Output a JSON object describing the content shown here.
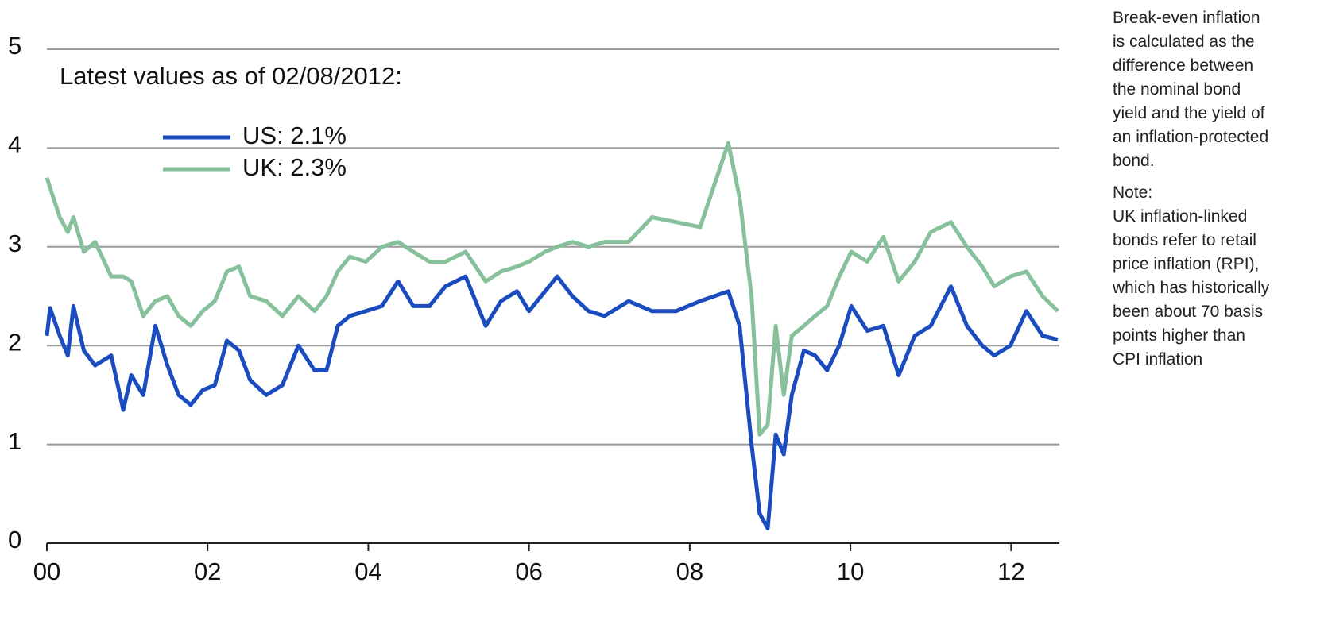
{
  "chart_data": {
    "type": "line",
    "annotation": "Latest values as of 02/08/2012:",
    "side_notes": [
      "Break-even inflation is calculated as the difference between the nominal bond yield and the yield of an inflation-protected bond.",
      "Note:",
      "UK inflation-linked bonds refer to retail price inflation (RPI), which has historically been about 70 basis points higher than CPI inflation"
    ],
    "x": [
      2000.0,
      2000.04,
      2000.16,
      2000.26,
      2000.33,
      2000.46,
      2000.6,
      2000.8,
      2000.95,
      2001.05,
      2001.2,
      2001.35,
      2001.5,
      2001.64,
      2001.79,
      2001.94,
      2002.09,
      2002.24,
      2002.39,
      2002.53,
      2002.73,
      2002.93,
      2003.13,
      2003.33,
      2003.48,
      2003.62,
      2003.77,
      2003.97,
      2004.17,
      2004.37,
      2004.56,
      2004.76,
      2004.96,
      2005.21,
      2005.46,
      2005.65,
      2005.85,
      2006.0,
      2006.2,
      2006.35,
      2006.54,
      2006.74,
      2006.94,
      2007.24,
      2007.53,
      2007.83,
      2008.13,
      2008.48,
      2008.62,
      2008.77,
      2008.87,
      2008.97,
      2009.07,
      2009.17,
      2009.27,
      2009.42,
      2009.56,
      2009.71,
      2009.86,
      2010.01,
      2010.21,
      2010.41,
      2010.6,
      2010.8,
      2011.0,
      2011.25,
      2011.45,
      2011.64,
      2011.79,
      2011.99,
      2012.19,
      2012.39,
      2012.58
    ],
    "series": [
      {
        "name": "US: 2.1%",
        "color": "#1a4cc0",
        "values": [
          2.1,
          2.38,
          2.1,
          1.9,
          2.4,
          1.95,
          1.8,
          1.9,
          1.35,
          1.7,
          1.5,
          2.2,
          1.8,
          1.5,
          1.4,
          1.55,
          1.6,
          2.05,
          1.95,
          1.65,
          1.5,
          1.6,
          2.0,
          1.75,
          1.75,
          2.2,
          2.3,
          2.35,
          2.4,
          2.65,
          2.4,
          2.4,
          2.6,
          2.7,
          2.2,
          2.45,
          2.55,
          2.35,
          2.55,
          2.7,
          2.5,
          2.35,
          2.3,
          2.45,
          2.35,
          2.35,
          2.45,
          2.55,
          2.2,
          1.0,
          0.3,
          0.15,
          1.1,
          0.9,
          1.5,
          1.95,
          1.9,
          1.75,
          2.0,
          2.4,
          2.15,
          2.2,
          1.7,
          2.1,
          2.2,
          2.6,
          2.2,
          2.0,
          1.9,
          2.0,
          2.35,
          2.1,
          2.06
        ]
      },
      {
        "name": "UK: 2.3%",
        "color": "#86c19c",
        "values": [
          3.7,
          3.6,
          3.3,
          3.15,
          3.3,
          2.95,
          3.05,
          2.7,
          2.7,
          2.65,
          2.3,
          2.45,
          2.5,
          2.3,
          2.2,
          2.35,
          2.45,
          2.75,
          2.8,
          2.5,
          2.45,
          2.3,
          2.5,
          2.35,
          2.5,
          2.75,
          2.9,
          2.85,
          3.0,
          3.05,
          2.95,
          2.85,
          2.85,
          2.95,
          2.65,
          2.75,
          2.8,
          2.85,
          2.95,
          3.0,
          3.05,
          3.0,
          3.05,
          3.05,
          3.3,
          3.25,
          3.2,
          4.05,
          3.5,
          2.5,
          1.1,
          1.2,
          2.2,
          1.5,
          2.1,
          2.2,
          2.3,
          2.4,
          2.7,
          2.95,
          2.85,
          3.1,
          2.65,
          2.85,
          3.15,
          3.25,
          3.0,
          2.8,
          2.6,
          2.7,
          2.75,
          2.5,
          2.35
        ]
      }
    ],
    "xlim": [
      2000,
      2012.6
    ],
    "xticks": [
      {
        "value": 2000,
        "label": "00"
      },
      {
        "value": 2002,
        "label": "02"
      },
      {
        "value": 2004,
        "label": "04"
      },
      {
        "value": 2006,
        "label": "06"
      },
      {
        "value": 2008,
        "label": "08"
      },
      {
        "value": 2010,
        "label": "10"
      },
      {
        "value": 2012,
        "label": "12"
      }
    ],
    "ylim": [
      0,
      5
    ],
    "yticks": [
      0,
      1,
      2,
      3,
      4,
      5
    ],
    "grid": true
  }
}
